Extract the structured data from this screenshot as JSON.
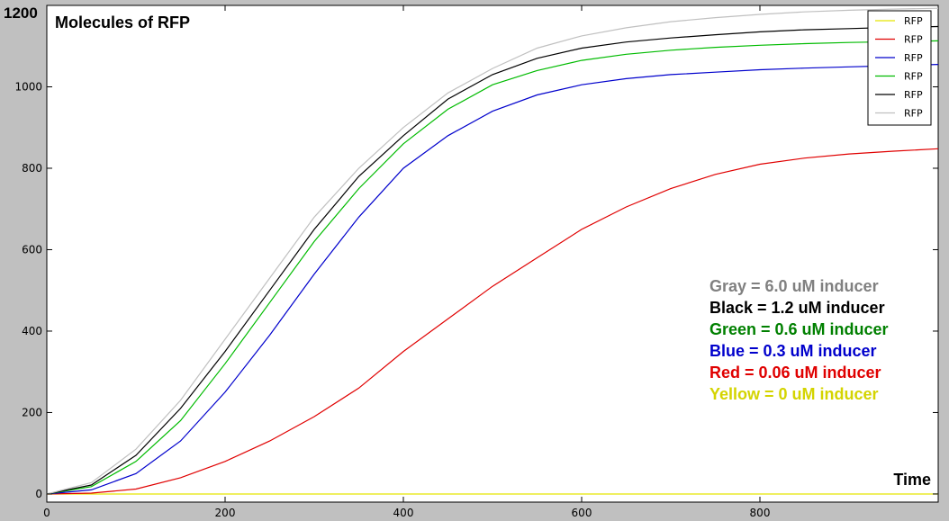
{
  "chart_data": {
    "type": "line",
    "title": "Molecules of RFP",
    "xlabel": "Time",
    "ylabel": "",
    "xlim": [
      0,
      1000
    ],
    "ylim": [
      -20,
      1200
    ],
    "xticks": [
      0,
      200,
      400,
      600,
      800
    ],
    "yticks": [
      0,
      200,
      400,
      600,
      800,
      1000
    ],
    "ytick_top_label": "1200",
    "grid": false,
    "legend_position": "top-right",
    "series": [
      {
        "name": "RFP",
        "color": "#e5e500",
        "x": [
          0,
          100,
          200,
          300,
          400,
          500,
          600,
          700,
          800,
          900,
          1000
        ],
        "y": [
          0,
          0,
          0,
          0,
          0,
          0,
          0,
          0,
          0,
          0,
          0
        ]
      },
      {
        "name": "RFP",
        "color": "#e00000",
        "x": [
          0,
          50,
          100,
          150,
          200,
          250,
          300,
          350,
          400,
          450,
          500,
          550,
          600,
          650,
          700,
          750,
          800,
          850,
          900,
          950,
          1000
        ],
        "y": [
          0,
          2,
          12,
          40,
          80,
          130,
          190,
          260,
          350,
          430,
          510,
          580,
          650,
          705,
          750,
          785,
          810,
          825,
          835,
          842,
          848
        ]
      },
      {
        "name": "RFP",
        "color": "#0000cc",
        "x": [
          0,
          50,
          100,
          150,
          200,
          250,
          300,
          350,
          400,
          450,
          500,
          550,
          600,
          650,
          700,
          750,
          800,
          850,
          900,
          950,
          1000
        ],
        "y": [
          0,
          10,
          50,
          130,
          250,
          390,
          540,
          680,
          800,
          880,
          940,
          980,
          1005,
          1020,
          1030,
          1036,
          1042,
          1046,
          1049,
          1052,
          1055
        ]
      },
      {
        "name": "RFP",
        "color": "#00bb00",
        "x": [
          0,
          50,
          100,
          150,
          200,
          250,
          300,
          350,
          400,
          450,
          500,
          550,
          600,
          650,
          700,
          750,
          800,
          850,
          900,
          950,
          1000
        ],
        "y": [
          0,
          18,
          80,
          180,
          320,
          470,
          620,
          750,
          860,
          945,
          1005,
          1040,
          1065,
          1080,
          1090,
          1097,
          1102,
          1106,
          1109,
          1111,
          1113
        ]
      },
      {
        "name": "RFP",
        "color": "#000000",
        "x": [
          0,
          50,
          100,
          150,
          200,
          250,
          300,
          350,
          400,
          450,
          500,
          550,
          600,
          650,
          700,
          750,
          800,
          850,
          900,
          950,
          1000
        ],
        "y": [
          0,
          22,
          95,
          210,
          350,
          500,
          650,
          780,
          880,
          970,
          1030,
          1070,
          1095,
          1110,
          1120,
          1128,
          1135,
          1140,
          1143,
          1146,
          1148
        ]
      },
      {
        "name": "RFP",
        "color": "#c0c0c0",
        "x": [
          0,
          50,
          100,
          150,
          200,
          250,
          300,
          350,
          400,
          450,
          500,
          550,
          600,
          650,
          700,
          750,
          800,
          850,
          900,
          950,
          1000
        ],
        "y": [
          0,
          28,
          110,
          230,
          380,
          530,
          680,
          800,
          900,
          985,
          1045,
          1095,
          1125,
          1145,
          1160,
          1170,
          1178,
          1184,
          1188,
          1191,
          1193
        ]
      }
    ],
    "annotations": [
      {
        "text": "Gray = 6.0 uM inducer",
        "color": "#808080"
      },
      {
        "text": "Black = 1.2 uM inducer",
        "color": "#000000"
      },
      {
        "text": "Green = 0.6 uM inducer",
        "color": "#008000"
      },
      {
        "text": "Blue = 0.3 uM inducer",
        "color": "#0000cc"
      },
      {
        "text": "Red = 0.06 uM inducer",
        "color": "#e00000"
      },
      {
        "text": "Yellow = 0 uM inducer",
        "color": "#d4d400"
      }
    ]
  }
}
